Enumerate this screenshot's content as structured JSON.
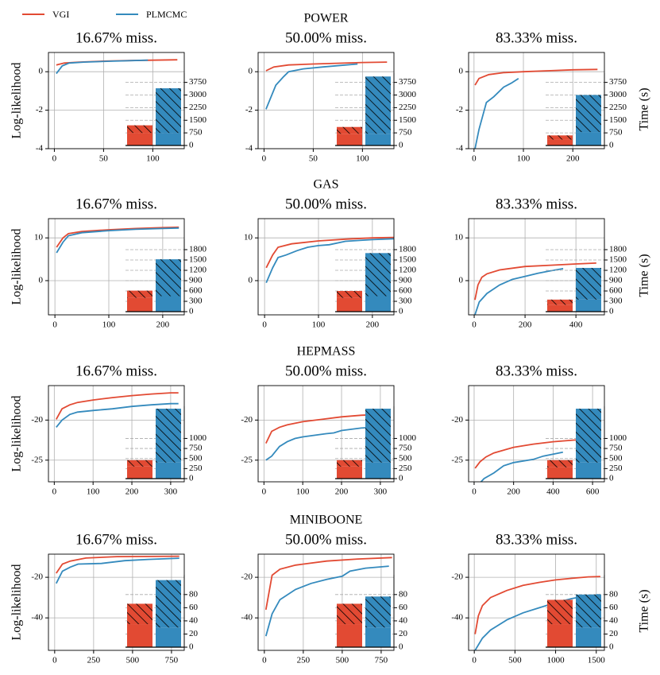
{
  "legend": [
    {
      "name": "VGI",
      "color": "#e24a33"
    },
    {
      "name": "PLMCMC",
      "color": "#348abd"
    }
  ],
  "chart_data": [
    {
      "type": "line",
      "title": "16.67% miss.",
      "ylabel": "Log-likelihood",
      "xlim": [
        -6,
        132
      ],
      "xticks": [
        0,
        50,
        100
      ],
      "ylim": [
        -4,
        1
      ],
      "yticks": [
        -4,
        -2,
        0
      ],
      "grid": true,
      "series": [
        {
          "x": [
            2,
            10,
            25,
            50,
            75,
            100,
            125
          ],
          "values": [
            0.35,
            0.45,
            0.5,
            0.55,
            0.58,
            0.6,
            0.62
          ]
        },
        {
          "x": [
            2,
            8,
            15,
            30,
            60,
            95
          ],
          "values": [
            -0.1,
            0.3,
            0.45,
            0.5,
            0.55,
            0.6
          ]
        }
      ],
      "y2lim": [
        0,
        4300
      ],
      "y2ticks": [
        0,
        750,
        1500,
        2250,
        3000,
        3750
      ],
      "time": [
        [
          750,
          450
        ],
        [
          750,
          2650
        ]
      ]
    },
    {
      "type": "line",
      "suptitle": "POWER",
      "title": "50.00% miss.",
      "xlim": [
        -6,
        132
      ],
      "xticks": [
        0,
        50,
        100
      ],
      "ylim": [
        -4,
        1
      ],
      "yticks": [
        -4,
        -2,
        0
      ],
      "grid": true,
      "series": [
        {
          "x": [
            2,
            10,
            25,
            50,
            100,
            125
          ],
          "values": [
            0.05,
            0.25,
            0.35,
            0.4,
            0.48,
            0.5
          ]
        },
        {
          "x": [
            2,
            12,
            20,
            25,
            40,
            60,
            95
          ],
          "values": [
            -1.95,
            -0.7,
            -0.25,
            0.0,
            0.15,
            0.25,
            0.4
          ]
        }
      ],
      "y2lim": [
        0,
        4300
      ],
      "y2ticks": [
        0,
        750,
        1500,
        2250,
        3000,
        3750
      ],
      "time": [
        [
          700,
          400
        ],
        [
          700,
          3400
        ]
      ]
    },
    {
      "type": "line",
      "title": "83.33% miss.",
      "y2label": "Time (s)",
      "xlim": [
        -11,
        264
      ],
      "xticks": [
        0,
        100,
        200
      ],
      "ylim": [
        -4,
        1
      ],
      "yticks": [
        -4,
        -2,
        0
      ],
      "grid": true,
      "series": [
        {
          "x": [
            2,
            10,
            30,
            60,
            100,
            150,
            200,
            250
          ],
          "values": [
            -0.7,
            -0.35,
            -0.15,
            -0.05,
            0.0,
            0.05,
            0.1,
            0.12
          ]
        },
        {
          "x": [
            2,
            10,
            25,
            40,
            60,
            75,
            90
          ],
          "values": [
            -4,
            -3,
            -1.6,
            -1.3,
            -0.8,
            -0.6,
            -0.35
          ]
        }
      ],
      "y2lim": [
        0,
        4300
      ],
      "y2ticks": [
        0,
        750,
        1500,
        2250,
        3000,
        3750
      ],
      "time": [
        [
          350,
          250
        ],
        [
          800,
          2200
        ]
      ]
    },
    {
      "type": "line",
      "title": "16.67% miss.",
      "ylabel": "Log-likelihood",
      "xlim": [
        -12,
        240
      ],
      "xticks": [
        0,
        100,
        200
      ],
      "ylim": [
        -8,
        14.5
      ],
      "yticks": [
        0,
        10
      ],
      "grid": true,
      "series": [
        {
          "x": [
            3,
            15,
            25,
            50,
            100,
            150,
            200,
            230
          ],
          "values": [
            7.8,
            10,
            11,
            11.5,
            11.9,
            12.2,
            12.4,
            12.5
          ]
        },
        {
          "x": [
            3,
            15,
            25,
            50,
            100,
            150,
            200,
            230
          ],
          "values": [
            6.5,
            9,
            10.5,
            11.2,
            11.7,
            12,
            12.2,
            12.3
          ]
        }
      ],
      "y2lim": [
        0,
        2100
      ],
      "y2ticks": [
        0,
        300,
        600,
        900,
        1200,
        1500,
        1800
      ],
      "time": [
        [
          400,
          210
        ],
        [
          450,
          1070
        ]
      ]
    },
    {
      "type": "line",
      "suptitle": "GAS",
      "title": "50.00% miss.",
      "xlim": [
        -12,
        240
      ],
      "xticks": [
        0,
        100,
        200
      ],
      "ylim": [
        -8,
        14.5
      ],
      "yticks": [
        0,
        10
      ],
      "grid": true,
      "series": [
        {
          "x": [
            3,
            15,
            25,
            50,
            100,
            150,
            200,
            240
          ],
          "values": [
            3,
            6,
            7.8,
            8.6,
            9.3,
            9.7,
            10,
            10.1
          ]
        },
        {
          "x": [
            3,
            15,
            25,
            40,
            60,
            80,
            100,
            120,
            150,
            200,
            240
          ],
          "values": [
            -0.5,
            3,
            5.4,
            6,
            7,
            7.8,
            8.2,
            8.4,
            9.2,
            9.6,
            9.8
          ]
        }
      ],
      "y2lim": [
        0,
        2100
      ],
      "y2ticks": [
        0,
        300,
        600,
        900,
        1200,
        1500,
        1800
      ],
      "time": [
        [
          400,
          200
        ],
        [
          450,
          1250
        ]
      ]
    },
    {
      "type": "line",
      "title": "83.33% miss.",
      "y2label": "Time (s)",
      "xlim": [
        -22,
        512
      ],
      "xticks": [
        0,
        200,
        400
      ],
      "ylim": [
        -8,
        14.5
      ],
      "yticks": [
        0,
        10
      ],
      "grid": true,
      "series": [
        {
          "x": [
            3,
            15,
            30,
            50,
            100,
            200,
            300,
            400,
            480
          ],
          "values": [
            -4.5,
            -1,
            0.8,
            1.6,
            2.5,
            3.3,
            3.6,
            3.9,
            4.1
          ]
        },
        {
          "x": [
            3,
            20,
            50,
            100,
            150,
            200,
            250,
            300,
            350
          ],
          "values": [
            -8,
            -5,
            -3,
            -1,
            0.3,
            1,
            1.7,
            2.3,
            2.8
          ]
        }
      ],
      "y2lim": [
        0,
        2100
      ],
      "y2ticks": [
        0,
        300,
        600,
        900,
        1200,
        1500,
        1800
      ],
      "time": [
        [
          200,
          150
        ],
        [
          350,
          920
        ]
      ]
    },
    {
      "type": "line",
      "title": "16.67% miss.",
      "ylabel": "Log-likelihood",
      "xlim": [
        -15,
        335
      ],
      "xticks": [
        0,
        100,
        200,
        300
      ],
      "ylim": [
        -27.7,
        -15.7
      ],
      "yticks": [
        -25,
        -20
      ],
      "grid": true,
      "series": [
        {
          "x": [
            5,
            20,
            40,
            60,
            100,
            150,
            200,
            250,
            300,
            320
          ],
          "values": [
            -19.9,
            -18.6,
            -18.1,
            -17.8,
            -17.5,
            -17.2,
            -16.95,
            -16.75,
            -16.6,
            -16.6
          ]
        },
        {
          "x": [
            5,
            20,
            40,
            60,
            100,
            150,
            200,
            250,
            300,
            320
          ],
          "values": [
            -20.9,
            -20,
            -19.3,
            -19.0,
            -18.8,
            -18.6,
            -18.3,
            -18.1,
            -17.95,
            -17.95
          ]
        }
      ],
      "y2lim": [
        0,
        1800
      ],
      "y2ticks": [
        0,
        250,
        500,
        750,
        1000
      ],
      "time": [
        [
          300,
          160
        ],
        [
          400,
          1340
        ]
      ]
    },
    {
      "type": "line",
      "suptitle": "HEPMASS",
      "title": "50.00% miss.",
      "xlim": [
        -15,
        335
      ],
      "xticks": [
        0,
        100,
        200,
        300
      ],
      "ylim": [
        -27.7,
        -15.7
      ],
      "yticks": [
        -25,
        -20
      ],
      "grid": true,
      "series": [
        {
          "x": [
            5,
            20,
            40,
            60,
            100,
            150,
            200,
            250,
            320
          ],
          "values": [
            -22.9,
            -21.4,
            -20.9,
            -20.6,
            -20.2,
            -19.9,
            -19.6,
            -19.4,
            -19.25
          ]
        },
        {
          "x": [
            5,
            20,
            40,
            60,
            80,
            100,
            130,
            160,
            180,
            200,
            250,
            320
          ],
          "values": [
            -25,
            -24.5,
            -23.3,
            -22.7,
            -22.3,
            -22.1,
            -21.9,
            -21.7,
            -21.6,
            -21.3,
            -21.0,
            -20.8
          ]
        }
      ],
      "y2lim": [
        0,
        1800
      ],
      "y2ticks": [
        0,
        250,
        500,
        750,
        1000
      ],
      "time": [
        [
          300,
          160
        ],
        [
          400,
          1340
        ]
      ]
    },
    {
      "type": "line",
      "title": "83.33% miss.",
      "xlim": [
        -28,
        660
      ],
      "xticks": [
        0,
        200,
        400,
        600
      ],
      "ylim": [
        -27.7,
        -15.7
      ],
      "yticks": [
        -25,
        -20
      ],
      "grid": true,
      "series": [
        {
          "x": [
            5,
            30,
            60,
            100,
            200,
            300,
            400,
            500,
            640
          ],
          "values": [
            -26,
            -25.2,
            -24.6,
            -24.1,
            -23.4,
            -23.0,
            -22.7,
            -22.5,
            -22.3
          ]
        },
        {
          "x": [
            5,
            50,
            100,
            150,
            200,
            300,
            350,
            450
          ],
          "values": [
            -28.5,
            -27.3,
            -26.6,
            -25.7,
            -25.3,
            -24.9,
            -24.5,
            -24.0
          ]
        }
      ],
      "y2lim": [
        0,
        1800
      ],
      "y2ticks": [
        0,
        250,
        500,
        750,
        1000
      ],
      "time": [
        [
          280,
          180
        ],
        [
          400,
          1340
        ]
      ]
    },
    {
      "type": "line",
      "title": "16.67% miss.",
      "ylabel": "Log-likelihood",
      "xlim": [
        -40,
        832
      ],
      "xticks": [
        0,
        250,
        500,
        750
      ],
      "ylim": [
        -56,
        -8.6
      ],
      "yticks": [
        -40,
        -20
      ],
      "grid": true,
      "series": [
        {
          "x": [
            10,
            50,
            100,
            200,
            400,
            800
          ],
          "values": [
            -18,
            -13.5,
            -12,
            -10.5,
            -9.8,
            -9.6
          ]
        },
        {
          "x": [
            10,
            50,
            100,
            150,
            300,
            450,
            600,
            800
          ],
          "values": [
            -23,
            -17,
            -15,
            -13.5,
            -13.2,
            -11.8,
            -11.2,
            -10.6
          ]
        }
      ],
      "y2lim": [
        0,
        110
      ],
      "y2ticks": [
        0,
        20,
        40,
        60,
        80
      ],
      "time": [
        [
          35,
          31
        ],
        [
          30,
          72
        ]
      ]
    },
    {
      "type": "line",
      "suptitle": "MINIBOONE",
      "title": "50.00% miss.",
      "xlim": [
        -40,
        832
      ],
      "xticks": [
        0,
        250,
        500,
        750
      ],
      "ylim": [
        -56,
        -8.6
      ],
      "yticks": [
        -40,
        -20
      ],
      "grid": true,
      "series": [
        {
          "x": [
            10,
            50,
            100,
            200,
            400,
            600,
            820
          ],
          "values": [
            -36,
            -19,
            -16,
            -14,
            -12,
            -11,
            -10.3
          ]
        },
        {
          "x": [
            10,
            50,
            100,
            200,
            300,
            400,
            500,
            550,
            650,
            800
          ],
          "values": [
            -49,
            -38,
            -31,
            -26,
            -23,
            -21,
            -19.5,
            -17,
            -15.5,
            -14.5
          ]
        }
      ],
      "y2lim": [
        0,
        110
      ],
      "y2ticks": [
        0,
        20,
        40,
        60,
        80
      ],
      "time": [
        [
          35,
          31
        ],
        [
          30,
          47
        ]
      ]
    },
    {
      "type": "line",
      "title": "83.33% miss.",
      "y2label": "Time (s)",
      "xlim": [
        -70,
        1600
      ],
      "xticks": [
        0,
        500,
        1000,
        1500
      ],
      "ylim": [
        -56,
        -8.6
      ],
      "yticks": [
        -40,
        -20
      ],
      "grid": true,
      "series": [
        {
          "x": [
            10,
            50,
            100,
            200,
            400,
            600,
            800,
            1000,
            1200,
            1400,
            1550
          ],
          "values": [
            -48,
            -39,
            -34,
            -30,
            -26.5,
            -24,
            -22.5,
            -21.3,
            -20.5,
            -19.8,
            -19.6
          ]
        },
        {
          "x": [
            10,
            100,
            200,
            400,
            600,
            800,
            1000,
            1200,
            1400,
            1550
          ],
          "values": [
            -56,
            -50,
            -46,
            -41,
            -37.5,
            -35,
            -32.5,
            -30.5,
            -29,
            -28.5
          ]
        }
      ],
      "y2lim": [
        0,
        110
      ],
      "y2ticks": [
        0,
        20,
        40,
        60,
        80
      ],
      "time": [
        [
          35,
          37
        ],
        [
          30,
          50
        ]
      ]
    }
  ]
}
